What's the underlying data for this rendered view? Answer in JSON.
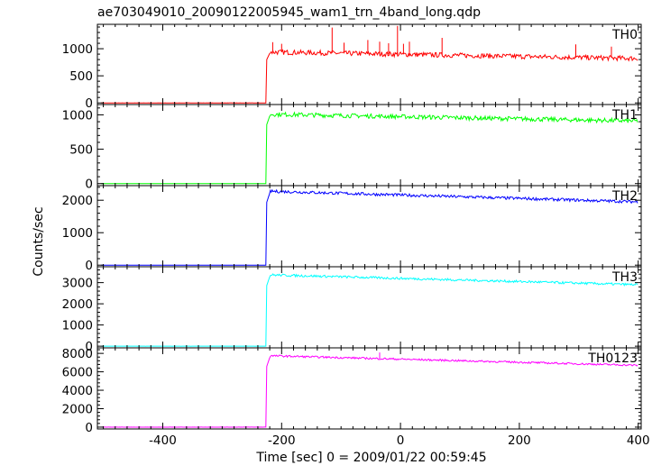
{
  "chart_data": {
    "type": "line",
    "title": "ae703049010_20090122005945_wam1_trn_4band_long.qdp",
    "xlabel": "Time [sec] 0 = 2009/01/22 00:59:45",
    "ylabel": "Counts/sec",
    "xlim": [
      -510,
      405
    ],
    "xticks": [
      -400,
      -200,
      0,
      200,
      400
    ],
    "panels": [
      {
        "name": "TH0",
        "color": "#ff0000",
        "ylim": [
          -30,
          1450
        ],
        "yticks": [
          0,
          500,
          1000
        ],
        "baseline": 0,
        "onset": -225,
        "start_level": 940,
        "end_level": 820,
        "noise": 45,
        "spikes": [
          {
            "x": -215,
            "y": 1120
          },
          {
            "x": -200,
            "y": 1090
          },
          {
            "x": -115,
            "y": 1390
          },
          {
            "x": -95,
            "y": 1110
          },
          {
            "x": -55,
            "y": 1160
          },
          {
            "x": -35,
            "y": 1130
          },
          {
            "x": -20,
            "y": 1100
          },
          {
            "x": -5,
            "y": 1420
          },
          {
            "x": 5,
            "y": 1090
          },
          {
            "x": 15,
            "y": 1130
          },
          {
            "x": 70,
            "y": 1200
          },
          {
            "x": 295,
            "y": 1080
          },
          {
            "x": 355,
            "y": 1040
          }
        ]
      },
      {
        "name": "TH1",
        "color": "#00ff00",
        "ylim": [
          -30,
          1150
        ],
        "yticks": [
          0,
          500,
          1000
        ],
        "baseline": 0,
        "onset": -225,
        "start_level": 1010,
        "end_level": 910,
        "noise": 32,
        "spikes": []
      },
      {
        "name": "TH2",
        "color": "#0000ff",
        "ylim": [
          -50,
          2450
        ],
        "yticks": [
          0,
          1000,
          2000
        ],
        "baseline": 0,
        "onset": -225,
        "start_level": 2280,
        "end_level": 1950,
        "noise": 45,
        "spikes": []
      },
      {
        "name": "TH3",
        "color": "#00ffff",
        "ylim": [
          -80,
          3750
        ],
        "yticks": [
          0,
          1000,
          2000,
          3000
        ],
        "baseline": 0,
        "onset": -225,
        "start_level": 3370,
        "end_level": 2900,
        "noise": 55,
        "spikes": []
      },
      {
        "name": "TH0123",
        "color": "#ff00ff",
        "ylim": [
          -200,
          8600
        ],
        "yticks": [
          0,
          2000,
          4000,
          6000,
          8000
        ],
        "baseline": 0,
        "onset": -225,
        "start_level": 7750,
        "end_level": 6700,
        "noise": 100,
        "spikes": [
          {
            "x": -35,
            "y": 8100
          }
        ]
      }
    ]
  }
}
